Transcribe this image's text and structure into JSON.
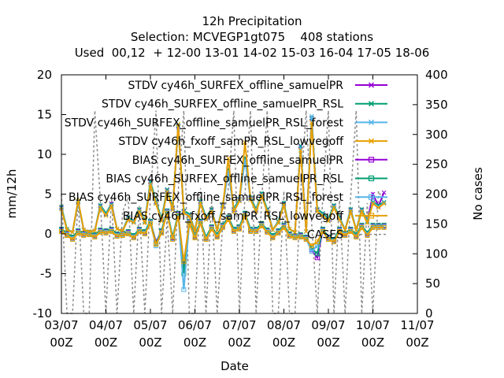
{
  "title_lines": [
    "12h Precipitation",
    "Selection: MCVEGP1gt075    408 stations",
    "Used  00,12  + 12-00 13-01 14-02 15-03 16-04 17-05 18-06"
  ],
  "chart_data": {
    "type": "line",
    "title": "12h Precipitation",
    "xlabel": "Date",
    "ylabel": "mm/12h",
    "y2label": "No cases",
    "ylim": [
      -10,
      20
    ],
    "y2lim": [
      0,
      400
    ],
    "xlim": [
      "03/07 00Z",
      "11/07 00Z"
    ],
    "grid": false,
    "legend_position": "top-right",
    "yticks": [
      "20",
      "15",
      "10",
      "5",
      "0",
      "-5",
      "-10"
    ],
    "y2ticks": [
      "400",
      "350",
      "300",
      "250",
      "200",
      "150",
      "100",
      "50",
      "0"
    ],
    "xticks": [
      {
        "top": "03/07",
        "bottom": "00Z"
      },
      {
        "top": "04/07",
        "bottom": "00Z"
      },
      {
        "top": "05/07",
        "bottom": "00Z"
      },
      {
        "top": "06/07",
        "bottom": "00Z"
      },
      {
        "top": "07/07",
        "bottom": "00Z"
      },
      {
        "top": "08/07",
        "bottom": "00Z"
      },
      {
        "top": "09/07",
        "bottom": "00Z"
      },
      {
        "top": "10/07",
        "bottom": "00Z"
      },
      {
        "top": "11/07",
        "bottom": "00Z"
      }
    ],
    "x": [
      0,
      0.125,
      0.25,
      0.375,
      0.5,
      0.625,
      0.75,
      0.875,
      1.0,
      1.125,
      1.25,
      1.375,
      1.5,
      1.625,
      1.75,
      1.875,
      2.0,
      2.125,
      2.25,
      2.375,
      2.5,
      2.625,
      2.75,
      2.875,
      3.0,
      3.125,
      3.25,
      3.375,
      3.5,
      3.625,
      3.75,
      3.875,
      4.0,
      4.125,
      4.25,
      4.375,
      4.5,
      4.625,
      4.75,
      4.875,
      5.0,
      5.125,
      5.25,
      5.375,
      5.5,
      5.625,
      5.75,
      5.875,
      6.0,
      6.125,
      6.25,
      6.375,
      6.5,
      6.625,
      6.75,
      6.875,
      7.0,
      7.125,
      7.25
    ],
    "series": [
      {
        "name": "STDV cy46h_SURFEX_offline_samuelPR",
        "axis": "y1",
        "color": "#9400d3",
        "marker": "x",
        "values": [
          3.3,
          0.5,
          0.2,
          4.0,
          0.5,
          0.3,
          0.4,
          3.5,
          2.5,
          3.8,
          0.6,
          0.4,
          2.0,
          1.5,
          3.0,
          1.5,
          6.5,
          4.0,
          1.8,
          5.5,
          3.2,
          13.5,
          2.8,
          2.4,
          0.4,
          4.0,
          2.0,
          3.0,
          0.5,
          3.5,
          8.0,
          3.0,
          4.3,
          9.5,
          4.5,
          3.0,
          5.0,
          3.0,
          0.5,
          1.5,
          3.8,
          0.6,
          0.2,
          11.0,
          0.3,
          14.5,
          3.0,
          2.5,
          1.8,
          3.5,
          2.0,
          0.5,
          3.0,
          0.5,
          3.0,
          1.5,
          5.0,
          3.5,
          5.2
        ]
      },
      {
        "name": "STDV cy46h_SURFEX_offline_samuelPR_RSL",
        "axis": "y1",
        "color": "#009e73",
        "marker": "x",
        "values": [
          3.4,
          0.6,
          0.2,
          4.1,
          0.5,
          0.3,
          0.4,
          3.6,
          2.6,
          3.7,
          0.6,
          0.4,
          2.1,
          1.6,
          3.1,
          1.6,
          6.6,
          4.1,
          1.9,
          5.6,
          3.3,
          13.6,
          2.9,
          2.5,
          0.4,
          4.1,
          2.1,
          3.1,
          0.5,
          3.6,
          8.2,
          3.1,
          4.4,
          9.6,
          4.6,
          3.1,
          5.1,
          3.1,
          0.5,
          1.6,
          3.9,
          0.6,
          0.2,
          11.1,
          0.3,
          14.6,
          3.1,
          2.6,
          1.9,
          3.6,
          2.1,
          0.5,
          3.1,
          0.5,
          3.1,
          1.6,
          4.0,
          3.6,
          4.0
        ]
      },
      {
        "name": "STDV cy46h_SURFEX_offline_samuelPR_RSL_forest",
        "axis": "y1",
        "color": "#56b4e9",
        "marker": "x",
        "values": [
          3.2,
          0.5,
          0.2,
          3.9,
          0.5,
          0.3,
          0.4,
          3.4,
          2.4,
          3.6,
          0.6,
          0.4,
          1.9,
          1.5,
          2.9,
          1.5,
          6.3,
          3.9,
          1.7,
          5.4,
          3.1,
          13.3,
          2.7,
          2.3,
          0.4,
          3.9,
          1.9,
          2.9,
          0.5,
          3.4,
          7.9,
          2.9,
          4.2,
          9.3,
          4.4,
          2.9,
          4.9,
          2.9,
          0.5,
          1.5,
          3.7,
          0.6,
          0.2,
          10.8,
          0.3,
          14.8,
          2.9,
          2.4,
          1.7,
          3.4,
          1.9,
          0.5,
          2.9,
          0.5,
          2.9,
          1.5,
          3.9,
          3.4,
          3.9
        ]
      },
      {
        "name": "STDV cy46h_fxoff_samPR_RSL_lowvegoff",
        "axis": "y1",
        "color": "#e69f00",
        "marker": "x",
        "values": [
          3.1,
          0.5,
          0.2,
          4.2,
          0.5,
          0.3,
          0.4,
          3.3,
          2.3,
          3.5,
          0.6,
          0.4,
          1.8,
          1.4,
          2.8,
          1.4,
          6.2,
          3.8,
          1.6,
          5.3,
          3.0,
          13.8,
          2.6,
          2.2,
          0.4,
          3.8,
          1.8,
          2.8,
          0.5,
          3.3,
          9.5,
          2.8,
          4.1,
          11.5,
          4.3,
          2.8,
          4.8,
          2.8,
          0.5,
          1.4,
          3.6,
          0.6,
          0.2,
          10.5,
          0.3,
          14.0,
          2.8,
          2.3,
          1.6,
          3.3,
          1.8,
          0.5,
          2.8,
          0.5,
          2.8,
          1.4,
          3.8,
          3.3,
          3.8
        ]
      },
      {
        "name": "BIAS cy46h_SURFEX_offline_samuelPR",
        "axis": "y1",
        "color": "#9400d3",
        "marker": "square",
        "values": [
          0.5,
          0.0,
          -0.5,
          0.3,
          0.0,
          0.1,
          -0.2,
          0.4,
          0.3,
          0.5,
          -0.1,
          0.0,
          0.2,
          -0.3,
          0.5,
          0.2,
          1.5,
          -1.0,
          0.3,
          2.8,
          -0.5,
          2.5,
          -4.0,
          1.5,
          -0.3,
          1.5,
          -0.5,
          0.8,
          -0.2,
          1.0,
          2.0,
          0.5,
          0.8,
          2.5,
          0.5,
          0.5,
          1.2,
          0.4,
          -0.3,
          0.3,
          1.0,
          -0.1,
          -0.3,
          -0.2,
          -0.5,
          -2.0,
          -3.0,
          0.5,
          -0.5,
          -0.8,
          0.5,
          0.0,
          0.5,
          -0.2,
          1.0,
          0.0,
          1.0,
          1.0,
          1.0
        ]
      },
      {
        "name": "BIAS cy46h_SURFEX_offline_samuelPR_RSL",
        "axis": "y1",
        "color": "#009e73",
        "marker": "square",
        "values": [
          0.6,
          0.1,
          -0.4,
          0.4,
          0.1,
          0.2,
          -0.1,
          0.5,
          0.4,
          0.6,
          0.0,
          0.1,
          0.3,
          -0.2,
          0.6,
          0.3,
          1.6,
          -1.2,
          0.4,
          2.9,
          -0.4,
          2.6,
          -5.0,
          1.6,
          -0.2,
          1.6,
          -0.4,
          0.9,
          -0.1,
          1.1,
          2.1,
          0.6,
          0.9,
          2.6,
          0.6,
          0.6,
          1.3,
          0.5,
          -0.2,
          0.4,
          1.1,
          0.0,
          -0.2,
          -0.1,
          -0.4,
          -1.8,
          -2.5,
          0.6,
          -0.4,
          -0.7,
          0.6,
          0.1,
          0.6,
          -0.1,
          1.1,
          0.1,
          1.1,
          1.1,
          1.1
        ]
      },
      {
        "name": "BIAS cy46h_SURFEX_offline_samuelPR_RSL_forest",
        "axis": "y1",
        "color": "#56b4e9",
        "marker": "square",
        "values": [
          0.4,
          -0.1,
          -0.6,
          0.2,
          -0.1,
          0.0,
          -0.3,
          0.3,
          0.2,
          0.4,
          -0.2,
          -0.1,
          0.1,
          -0.4,
          0.4,
          0.1,
          1.4,
          -1.5,
          0.2,
          2.7,
          -0.6,
          2.4,
          -7.0,
          1.4,
          -0.4,
          1.4,
          -0.6,
          0.7,
          -0.3,
          0.9,
          1.9,
          0.4,
          0.7,
          2.4,
          0.4,
          0.4,
          1.1,
          0.3,
          -0.4,
          0.2,
          0.9,
          -0.2,
          -0.4,
          -0.3,
          -0.6,
          -2.2,
          -1.5,
          0.4,
          -0.6,
          -0.9,
          0.4,
          -0.1,
          0.4,
          -0.3,
          0.9,
          -0.1,
          0.9,
          0.9,
          0.9
        ]
      },
      {
        "name": "BIAS cy46h_fxoff_samPR_RSL_lowvegoff",
        "axis": "y1",
        "color": "#e69f00",
        "marker": "square",
        "values": [
          0.3,
          -0.2,
          -0.7,
          0.1,
          -0.2,
          -0.1,
          -0.4,
          0.2,
          0.1,
          0.3,
          -0.3,
          -0.2,
          0.0,
          -0.5,
          0.3,
          0.0,
          1.3,
          -1.3,
          0.1,
          2.6,
          -0.7,
          2.3,
          -3.5,
          1.3,
          -0.5,
          1.3,
          -0.7,
          0.6,
          -0.4,
          0.8,
          1.8,
          0.3,
          0.6,
          2.3,
          0.3,
          0.3,
          1.0,
          0.2,
          -0.5,
          0.1,
          0.8,
          -0.3,
          -0.5,
          -0.4,
          -0.7,
          -1.5,
          -1.0,
          0.3,
          -0.7,
          -1.0,
          0.3,
          -0.2,
          0.3,
          -0.4,
          0.8,
          -0.2,
          0.8,
          0.8,
          0.8
        ]
      },
      {
        "name": "CASES",
        "axis": "y2",
        "color": "#8c8c8c",
        "dashed": true,
        "marker": "none",
        "values": [
          200,
          0,
          0,
          195,
          0,
          0,
          340,
          190,
          0,
          195,
          0,
          170,
          195,
          0,
          180,
          0,
          195,
          340,
          0,
          160,
          0,
          205,
          340,
          0,
          0,
          210,
          0,
          190,
          0,
          150,
          210,
          340,
          0,
          200,
          340,
          0,
          190,
          340,
          0,
          0,
          205,
          0,
          0,
          200,
          340,
          150,
          0,
          195,
          340,
          0,
          190,
          0,
          195,
          340,
          0,
          185,
          0,
          205,
          185
        ]
      }
    ]
  }
}
